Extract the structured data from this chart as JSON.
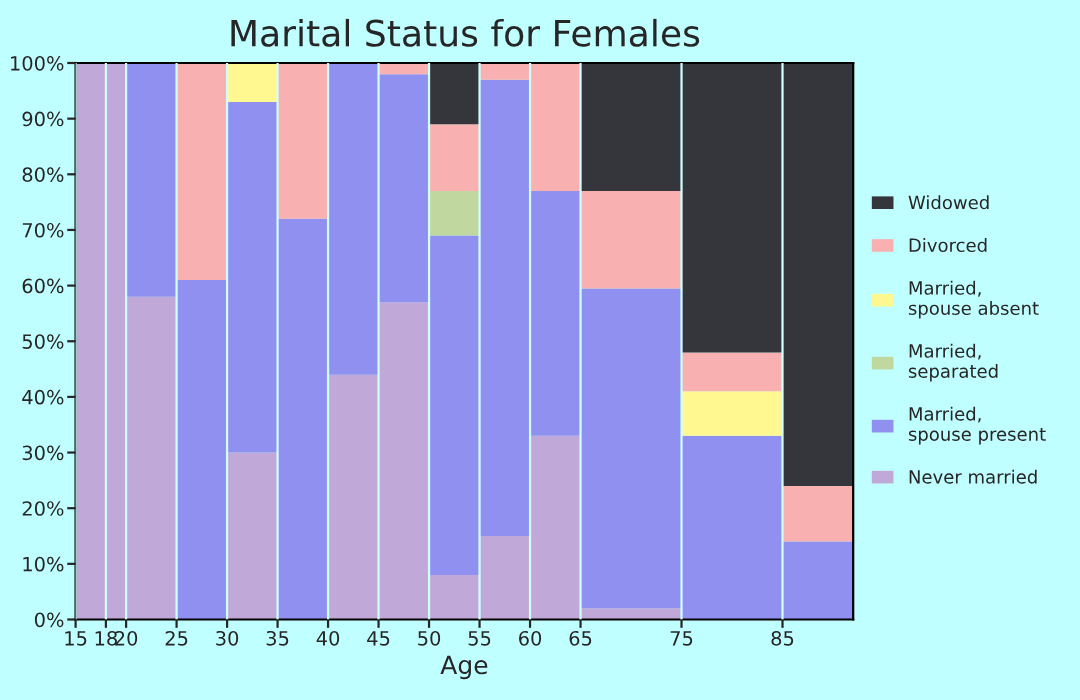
{
  "chart_data": {
    "type": "bar",
    "title": "Marital Status for Females",
    "xlabel": "Age",
    "stacked": true,
    "grid": "x",
    "legend": "right",
    "x": [
      16.5,
      19,
      22.5,
      27.5,
      32.5,
      37.5,
      42.5,
      47.5,
      52.5,
      57.5,
      62.5,
      70,
      80,
      88.5
    ],
    "xlim": [
      15,
      92
    ],
    "xticks": [
      15,
      18,
      20,
      25,
      30,
      35,
      40,
      45,
      50,
      55,
      60,
      65,
      75,
      85
    ],
    "ylim": [
      0,
      100
    ],
    "yticks": [
      {
        "value": 0,
        "label": "0%"
      },
      {
        "value": 10,
        "label": "10%"
      },
      {
        "value": 20,
        "label": "20%"
      },
      {
        "value": 30,
        "label": "30%"
      },
      {
        "value": 40,
        "label": "40%"
      },
      {
        "value": 50,
        "label": "50%"
      },
      {
        "value": 60,
        "label": "60%"
      },
      {
        "value": 70,
        "label": "70%"
      },
      {
        "value": 80,
        "label": "80%"
      },
      {
        "value": 90,
        "label": "90%"
      },
      {
        "value": 100,
        "label": "100%"
      }
    ],
    "series": [
      {
        "name": "Never married",
        "color": "#c0a8d8",
        "values": [
          100,
          100,
          58,
          0,
          30,
          0,
          44,
          57,
          8,
          15,
          33,
          2,
          0,
          0
        ]
      },
      {
        "name": "Married,\nspouse present",
        "color": "#9090f0",
        "values": [
          0,
          0,
          42,
          61,
          63,
          72,
          56,
          41,
          61,
          82,
          44,
          57.5,
          33,
          14
        ]
      },
      {
        "name": "Married,\nseparated",
        "color": "#c0d8a0",
        "values": [
          0,
          0,
          0,
          0,
          0,
          0,
          0,
          0,
          8,
          0,
          0,
          0,
          0,
          0
        ]
      },
      {
        "name": "Married,\nspouse absent",
        "color": "#fff890",
        "values": [
          0,
          0,
          0,
          0,
          7,
          0,
          0,
          0,
          0,
          0,
          0,
          0,
          8,
          0
        ]
      },
      {
        "name": "Divorced",
        "color": "#f8b0b0",
        "values": [
          0,
          0,
          0,
          39,
          0,
          28,
          0,
          2,
          12,
          3,
          23,
          17.5,
          7,
          10
        ]
      },
      {
        "name": "Widowed",
        "color": "#35363b",
        "values": [
          0,
          0,
          0,
          0,
          0,
          0,
          0,
          0,
          11,
          0,
          0,
          23,
          52,
          76
        ]
      }
    ]
  }
}
